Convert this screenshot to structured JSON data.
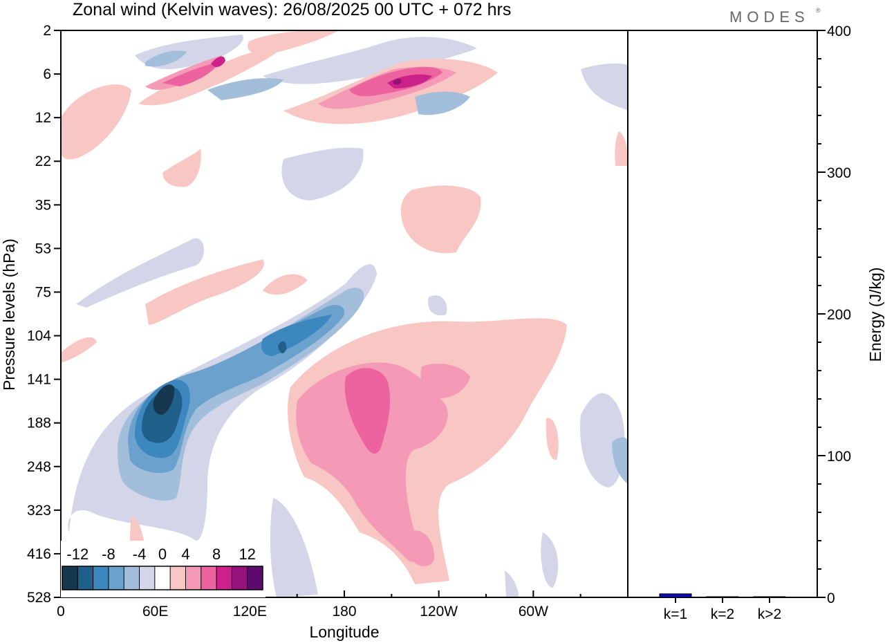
{
  "title": "Zonal wind (Kelvin waves):  26/08/2025  00 UTC  + 072 hrs",
  "brand": "MODES",
  "brand_mark": "®",
  "chart_data": [
    {
      "type": "heatmap",
      "title": "Zonal wind (Kelvin waves):  26/08/2025  00 UTC  + 072 hrs",
      "xlabel": "Longitude",
      "ylabel": "Pressure levels (hPa)",
      "x_ticks": [
        "0",
        "60E",
        "120E",
        "180",
        "120W",
        "60W"
      ],
      "x_tick_degrees": [
        0,
        60,
        120,
        180,
        240,
        300
      ],
      "x_range_degrees": [
        0,
        360
      ],
      "y_ticks": [
        "2",
        "6",
        "12",
        "22",
        "35",
        "53",
        "75",
        "104",
        "141",
        "188",
        "248",
        "323",
        "416",
        "528"
      ],
      "y_range": [
        "2",
        "528"
      ],
      "colorbar": {
        "tick_labels": [
          "-12",
          "-8",
          "-4",
          "0",
          "4",
          "8",
          "12"
        ],
        "levels": [
          -14,
          -12,
          -10,
          -8,
          -6,
          -4,
          -2,
          2,
          4,
          6,
          8,
          10,
          12,
          14
        ],
        "colors": [
          "#15384f",
          "#1f5f8a",
          "#3b87be",
          "#6aa2cd",
          "#a3bedb",
          "#d3d6e8",
          "#ffffff",
          "#f8c6c3",
          "#f59ab6",
          "#ec63a0",
          "#ca218b",
          "#93137a",
          "#5c0a6d"
        ],
        "placement": "bottom-left inset"
      },
      "features": [
        {
          "sign": "negative",
          "peak": -14,
          "lon": 60,
          "pressure": 155
        },
        {
          "sign": "negative",
          "peak": -10,
          "lon": 140,
          "pressure": 110
        },
        {
          "sign": "positive",
          "peak": 9,
          "lon": 193,
          "pressure": 160
        },
        {
          "sign": "positive",
          "peak": 12,
          "lon": 205,
          "pressure": 6
        },
        {
          "sign": "positive",
          "peak": 12,
          "lon": 100,
          "pressure": 5
        }
      ]
    },
    {
      "type": "bar",
      "categories": [
        "k=1",
        "k=2",
        "k>2"
      ],
      "values": [
        2.5,
        0.3,
        0.5
      ],
      "ylabel": "Energy (J/kg)",
      "ylim": [
        0,
        400
      ],
      "y_ticks": [
        0,
        100,
        200,
        300,
        400
      ],
      "bar_color": "#0b0bb8"
    }
  ]
}
